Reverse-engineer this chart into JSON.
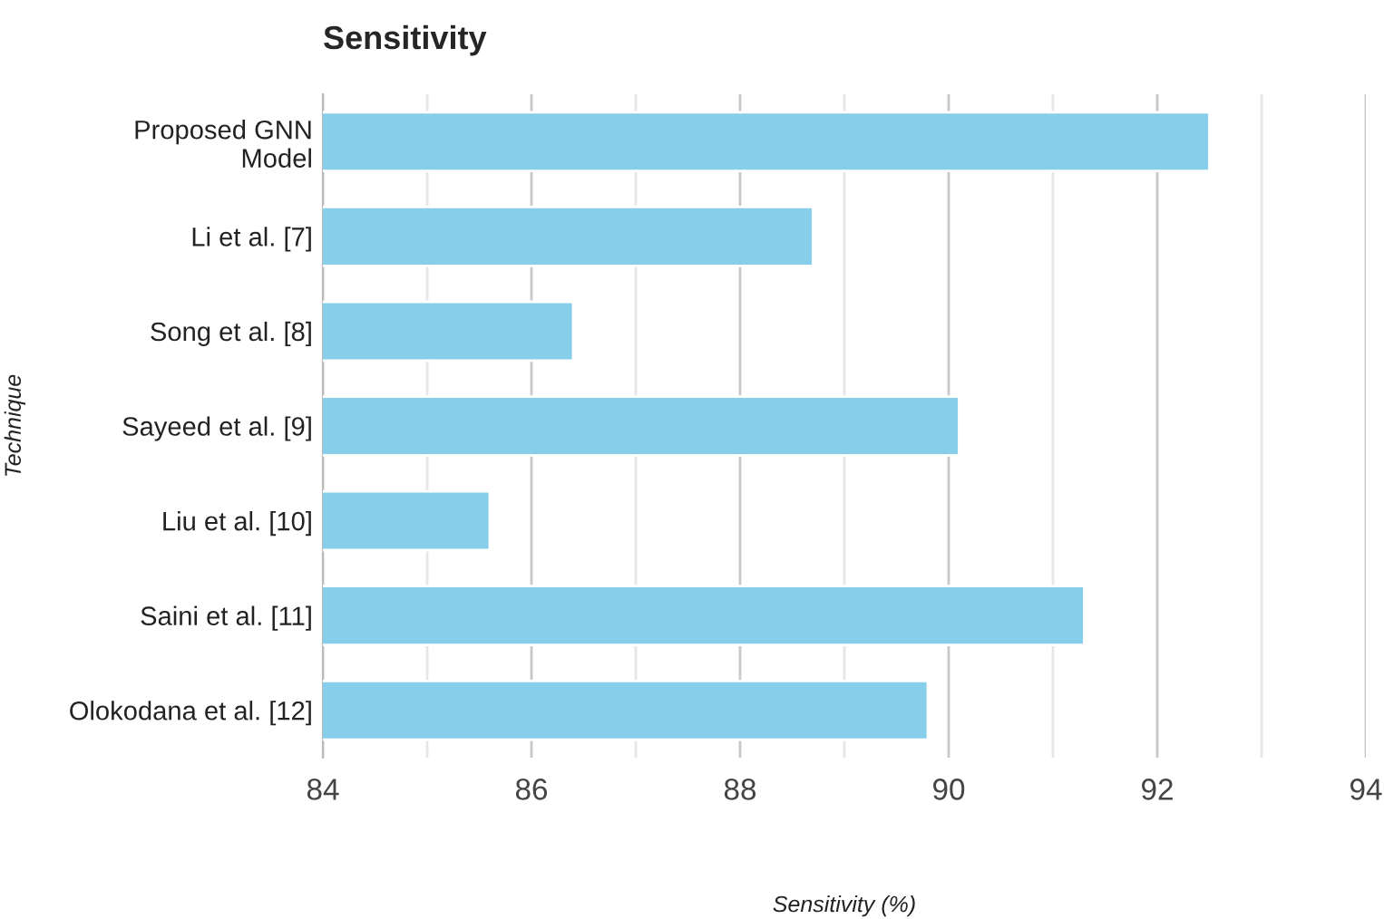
{
  "chart_data": {
    "type": "bar",
    "orientation": "horizontal",
    "title": "Sensitivity",
    "xlabel": "Sensitivity (%)",
    "ylabel": "Technique",
    "categories": [
      "Proposed GNN\nModel",
      "Li et al. [7]",
      "Song et al. [8]",
      "Sayeed et al. [9]",
      "Liu et al. [10]",
      "Saini et al. [11]",
      "Olokodana et al. [12]"
    ],
    "values": [
      92.5,
      88.7,
      86.4,
      90.1,
      85.6,
      91.3,
      89.8
    ],
    "color": "#87ceeb",
    "xlim": [
      84,
      94
    ],
    "xticks": [
      84,
      {
        "value": 85,
        "label": null
      },
      86,
      {
        "value": 87,
        "label": null
      },
      88,
      {
        "value": 89,
        "label": null
      },
      90,
      {
        "value": 91,
        "label": null
      },
      92,
      {
        "value": 93,
        "label": null
      },
      94
    ],
    "grid": "x"
  }
}
